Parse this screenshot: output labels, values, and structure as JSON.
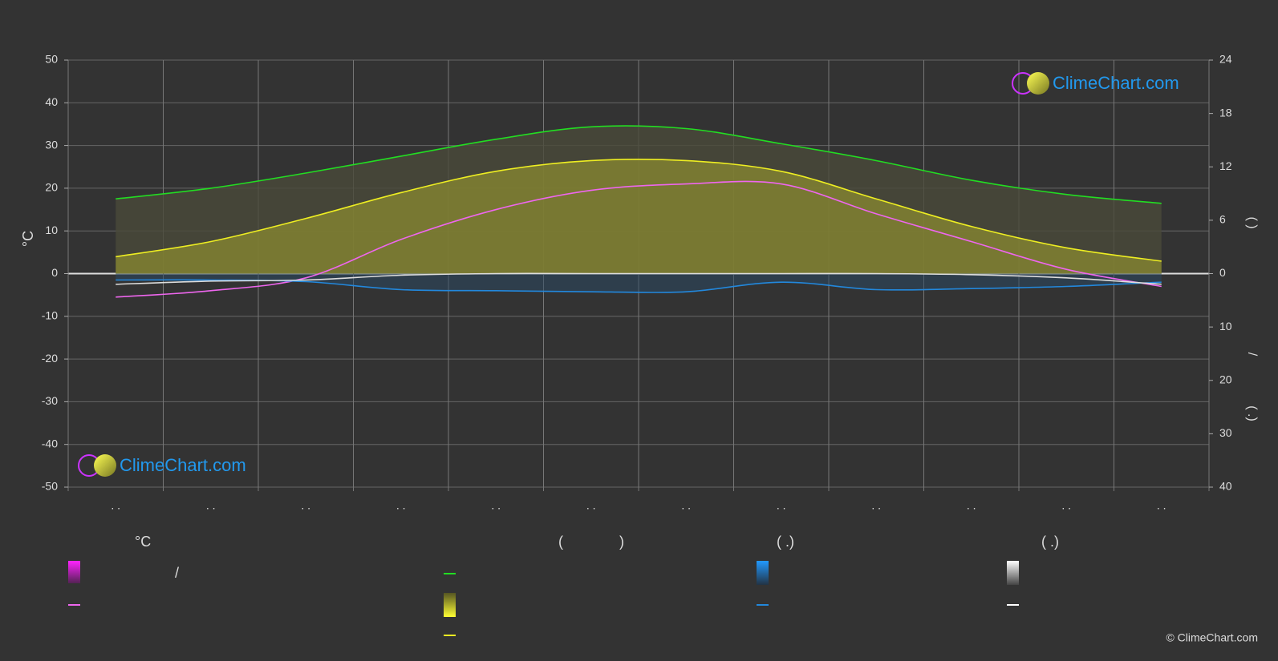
{
  "chart_data": {
    "type": "line",
    "categories": [
      ". .",
      ". .",
      ". .",
      ". .",
      ". .",
      ". .",
      ". .",
      ". .",
      ". .",
      ". .",
      ". .",
      ". ."
    ],
    "ylabel": "°C",
    "ylim": [
      -50,
      50
    ],
    "yticks": [
      -50,
      -40,
      -30,
      -20,
      -10,
      0,
      10,
      20,
      30,
      40,
      50
    ],
    "y2lim": [
      0,
      24
    ],
    "y2ticks": [
      0,
      6,
      12,
      18,
      24
    ],
    "y2label": "(      )",
    "y3lim": [
      0,
      40
    ],
    "y3ticks": [
      10,
      20,
      30,
      40
    ],
    "y3label": "/",
    "y3label2": "(  .)",
    "grid": true,
    "series": [
      {
        "color": "#22dd22",
        "axis": "y2",
        "values": [
          8.4,
          9.6,
          11.3,
          13.2,
          15.1,
          16.5,
          16.3,
          14.6,
          12.7,
          10.5,
          8.9,
          7.9
        ]
      },
      {
        "color": "#eeee22",
        "axis": "y2",
        "values": [
          1.9,
          3.6,
          6.2,
          9.1,
          11.5,
          12.7,
          12.7,
          11.5,
          8.4,
          5.3,
          2.9,
          1.4
        ]
      },
      {
        "color": "#ee66ee",
        "axis": "y",
        "values": [
          -5.5,
          -4,
          -1,
          8,
          15,
          19.5,
          21,
          21,
          14,
          7.5,
          1,
          -3
        ]
      },
      {
        "color": "#2288dd",
        "axis": "y3",
        "values": [
          1.2,
          1.2,
          1.5,
          3.0,
          3.2,
          3.4,
          3.4,
          1.6,
          3.0,
          2.8,
          2.4,
          1.6
        ]
      },
      {
        "color": "#dddddd",
        "axis": "y3",
        "values": [
          2.0,
          1.4,
          1.2,
          0.3,
          0,
          0,
          0,
          0,
          0,
          0.2,
          0.8,
          2.0
        ]
      }
    ],
    "legend_headers": [
      "°C",
      "(",
      ")",
      "(   .)",
      "(   .)"
    ],
    "legend_text": [
      "/"
    ],
    "watermarks": [
      "ClimeChart.com",
      "ClimeChart.com"
    ],
    "credit": "© ClimeChart.com"
  }
}
